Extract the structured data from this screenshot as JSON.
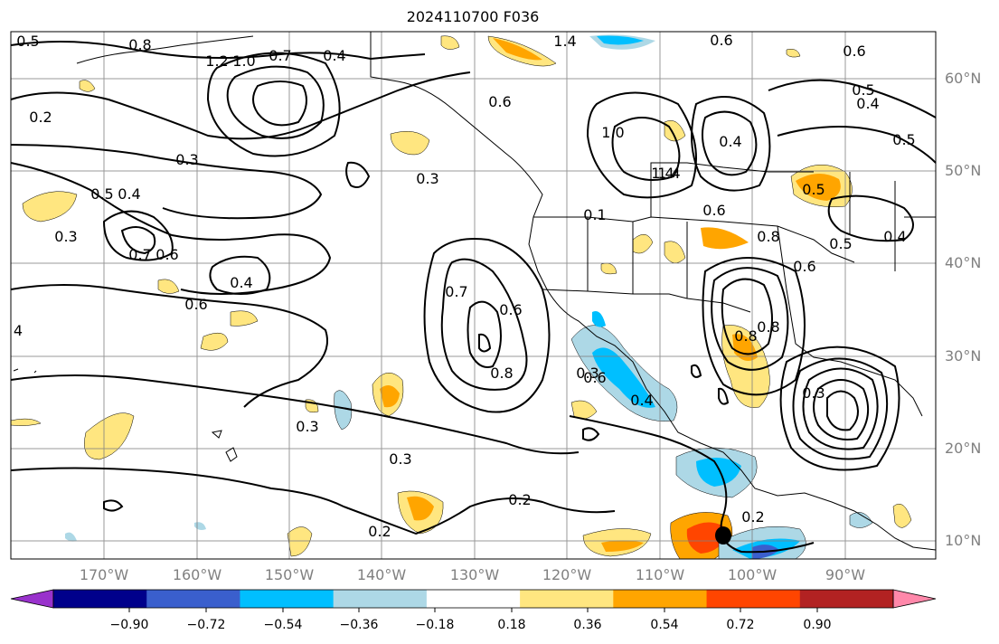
{
  "title": "2024110700 F036",
  "lat_labels": [
    "60°N",
    "50°N",
    "40°N",
    "30°N",
    "20°N",
    "10°N"
  ],
  "lon_labels": [
    "170°W",
    "160°W",
    "150°W",
    "140°W",
    "130°W",
    "120°W",
    "110°W",
    "100°W",
    "90°W"
  ],
  "colorbar": {
    "ticks": [
      "−0.90",
      "−0.72",
      "−0.54",
      "−0.36",
      "−0.18",
      "0.18",
      "0.36",
      "0.54",
      "0.72",
      "0.90"
    ],
    "colors": [
      "#9932cc",
      "#00008b",
      "#3a5fcd",
      "#00bfff",
      "#add8e6",
      "#ffffff",
      "#ffe680",
      "#ffa500",
      "#ff4500",
      "#b22222",
      "#ff88aa"
    ]
  },
  "contour_labels": [
    "0.5",
    "0.8",
    "1.4",
    "1.2",
    "1.0",
    "0.7",
    "0.4",
    "0.2",
    "0.3",
    "0.6",
    "0.5",
    "0.4",
    "0.3",
    "0.7",
    "0.6",
    "0.4",
    "0.6",
    "0.3",
    "0.3",
    "0.3",
    "0.2",
    "0.2",
    "0.2",
    "0.7",
    "0.6",
    "0.8",
    "0.3",
    "0.4",
    "1.4",
    "0.6",
    "0.6",
    "0.5",
    "0.4",
    "0.5",
    "0.1",
    "1.0",
    "1.4",
    "0.4",
    "0.5",
    "0.6",
    "0.8",
    "0.5",
    "0.6",
    "0.4",
    "0.8",
    "0.8",
    "0.3",
    "0.6",
    "4"
  ]
}
